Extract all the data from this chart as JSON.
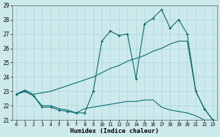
{
  "xlabel": "Humidex (Indice chaleur)",
  "bg_color": "#cce9ec",
  "grid_color": "#aad4d8",
  "line_color": "#006666",
  "ylim": [
    21,
    29
  ],
  "xlim": [
    -0.5,
    23.5
  ],
  "yticks": [
    21,
    22,
    23,
    24,
    25,
    26,
    27,
    28,
    29
  ],
  "xticks": [
    0,
    1,
    2,
    3,
    4,
    5,
    6,
    7,
    8,
    9,
    10,
    11,
    12,
    13,
    14,
    15,
    16,
    17,
    18,
    19,
    20,
    21,
    22,
    23
  ],
  "line1_x": [
    0,
    1,
    2,
    3,
    4,
    5,
    6,
    7,
    8,
    9,
    10,
    11,
    12,
    13,
    14,
    15,
    16,
    17,
    18,
    19,
    20,
    21,
    22,
    23
  ],
  "line1_y": [
    22.8,
    23.0,
    22.7,
    21.9,
    21.9,
    21.7,
    21.6,
    21.5,
    21.5,
    23.0,
    26.5,
    27.2,
    26.9,
    27.0,
    23.9,
    27.7,
    28.1,
    28.7,
    27.4,
    28.0,
    27.0,
    23.0,
    21.8,
    21.0
  ],
  "line2_x": [
    0,
    1,
    2,
    3,
    4,
    5,
    6,
    7,
    8,
    9,
    10,
    11,
    12,
    13,
    14,
    15,
    16,
    17,
    18,
    19,
    20,
    21,
    22,
    23
  ],
  "line2_y": [
    22.8,
    23.0,
    22.7,
    22.0,
    22.0,
    21.8,
    21.7,
    21.5,
    21.8,
    21.9,
    22.0,
    22.1,
    22.2,
    22.3,
    22.3,
    22.4,
    22.4,
    21.9,
    21.7,
    21.6,
    21.5,
    21.3,
    21.0,
    21.0
  ],
  "line3_x": [
    0,
    1,
    2,
    3,
    4,
    5,
    6,
    7,
    8,
    9,
    10,
    11,
    12,
    13,
    14,
    15,
    16,
    17,
    18,
    19,
    20,
    21,
    22,
    23
  ],
  "line3_y": [
    22.8,
    23.1,
    22.8,
    22.9,
    23.0,
    23.2,
    23.4,
    23.6,
    23.8,
    24.0,
    24.3,
    24.6,
    24.8,
    25.1,
    25.3,
    25.5,
    25.8,
    26.0,
    26.3,
    26.5,
    26.5,
    23.0,
    21.8,
    21.0
  ]
}
